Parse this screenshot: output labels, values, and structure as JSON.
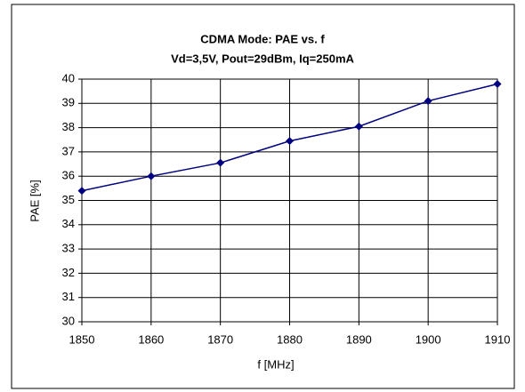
{
  "chart_data": {
    "type": "line",
    "title": "CDMA Mode: PAE vs. f",
    "subtitle": "Vd=3,5V, Pout=29dBm, Iq=250mA",
    "x_label": "f [MHz]",
    "y_label": "PAE [%]",
    "x": [
      1850,
      1860,
      1870,
      1880,
      1890,
      1900,
      1910
    ],
    "series": [
      {
        "name": "PAE",
        "color": "#000080",
        "values": [
          35.4,
          36.0,
          36.55,
          37.45,
          38.05,
          39.1,
          39.8
        ]
      }
    ],
    "xlim": [
      1850,
      1910
    ],
    "xticks": [
      1850,
      1860,
      1870,
      1880,
      1890,
      1900,
      1910
    ],
    "ylim": [
      30,
      40
    ],
    "yticks": [
      30,
      31,
      32,
      33,
      34,
      35,
      36,
      37,
      38,
      39,
      40
    ],
    "grid": true
  }
}
